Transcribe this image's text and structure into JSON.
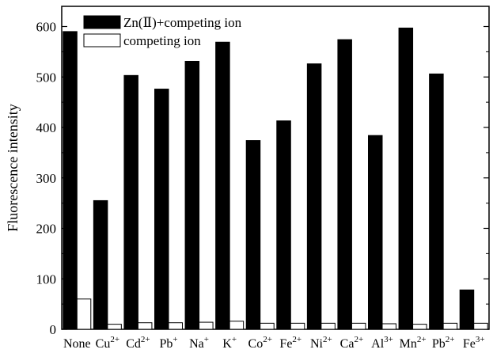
{
  "chart_data": {
    "type": "bar",
    "title": "",
    "xlabel": "",
    "ylabel": "Fluorescence intensity",
    "ylim": [
      0,
      640
    ],
    "yticks": [
      0,
      100,
      200,
      300,
      400,
      500,
      600
    ],
    "grid": false,
    "legend_position": "top-left",
    "categories": [
      {
        "base": "None",
        "sup": ""
      },
      {
        "base": "Cu",
        "sup": "2+"
      },
      {
        "base": "Cd",
        "sup": "2+"
      },
      {
        "base": "Pb",
        "sup": "+"
      },
      {
        "base": "Na",
        "sup": "+"
      },
      {
        "base": "K",
        "sup": "+"
      },
      {
        "base": "Co",
        "sup": "2+"
      },
      {
        "base": "Fe",
        "sup": "2+"
      },
      {
        "base": "Ni",
        "sup": "2+"
      },
      {
        "base": "Ca",
        "sup": "2+"
      },
      {
        "base": "Al",
        "sup": "3+"
      },
      {
        "base": "Mn",
        "sup": "2+"
      },
      {
        "base": "Pb",
        "sup": "2+"
      },
      {
        "base": "Fe",
        "sup": "3+"
      }
    ],
    "series": [
      {
        "name": "Zn(Ⅱ)+competing ion",
        "color": "#000000",
        "values": [
          590,
          255,
          503,
          476,
          531,
          569,
          374,
          413,
          526,
          574,
          384,
          597,
          506,
          78
        ]
      },
      {
        "name": "competing ion",
        "color": "#ffffff",
        "values": [
          60,
          10,
          13,
          13,
          14,
          16,
          12,
          12,
          12,
          12,
          11,
          10,
          12,
          12
        ]
      }
    ]
  }
}
